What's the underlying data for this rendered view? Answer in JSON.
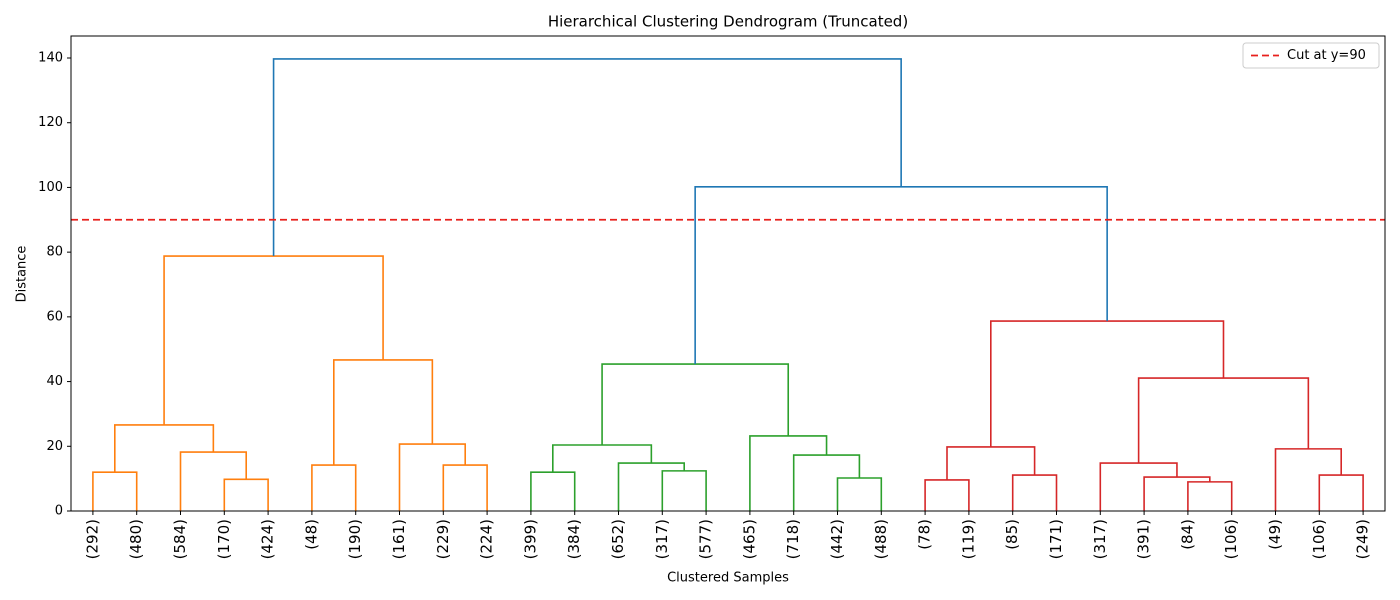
{
  "chart_data": {
    "type": "dendrogram",
    "title": "Hierarchical Clustering Dendrogram (Truncated)",
    "x_label": "Clustered Samples",
    "y_label": "Distance",
    "categories": [
      "(292)",
      "(480)",
      "(584)",
      "(170)",
      "(424)",
      "(48)",
      "(190)",
      "(161)",
      "(229)",
      "(224)",
      "(399)",
      "(384)",
      "(652)",
      "(317)",
      "(577)",
      "(465)",
      "(718)",
      "(442)",
      "(488)",
      "(78)",
      "(119)",
      "(85)",
      "(171)",
      "(317)",
      "(391)",
      "(84)",
      "(106)",
      "(49)",
      "(106)",
      "(249)"
    ],
    "xlim": [
      0,
      300
    ],
    "ylim": [
      0,
      146.8
    ],
    "yticks": [
      0,
      20,
      40,
      60,
      80,
      100,
      120,
      140
    ],
    "icoord": [
      [
        5,
        5,
        15,
        15
      ],
      [
        35,
        35,
        45,
        45
      ],
      [
        25,
        25,
        40,
        40
      ],
      [
        10,
        10,
        32.5,
        32.5
      ],
      [
        55,
        55,
        65,
        65
      ],
      [
        85,
        85,
        95,
        95
      ],
      [
        75,
        75,
        90,
        90
      ],
      [
        60,
        60,
        82.5,
        82.5
      ],
      [
        21.25,
        21.25,
        71.25,
        71.25
      ],
      [
        105,
        105,
        115,
        115
      ],
      [
        135,
        135,
        145,
        145
      ],
      [
        125,
        125,
        140,
        140
      ],
      [
        110,
        110,
        132.5,
        132.5
      ],
      [
        175,
        175,
        185,
        185
      ],
      [
        165,
        165,
        180,
        180
      ],
      [
        155,
        155,
        172.5,
        172.5
      ],
      [
        121.25,
        121.25,
        163.75,
        163.75
      ],
      [
        195,
        195,
        205,
        205
      ],
      [
        215,
        215,
        225,
        225
      ],
      [
        200,
        200,
        220,
        220
      ],
      [
        255,
        255,
        265,
        265
      ],
      [
        245,
        245,
        260,
        260
      ],
      [
        235,
        235,
        252.5,
        252.5
      ],
      [
        285,
        285,
        295,
        295
      ],
      [
        275,
        275,
        290,
        290
      ],
      [
        243.75,
        243.75,
        282.5,
        282.5
      ],
      [
        210,
        210,
        263.125,
        263.125
      ],
      [
        142.5,
        142.5,
        236.5625,
        236.5625
      ],
      [
        46.25,
        46.25,
        189.53125,
        189.53125
      ]
    ],
    "dcoord": [
      [
        0,
        12,
        12,
        0
      ],
      [
        0,
        9.8,
        9.8,
        0
      ],
      [
        0,
        18.2,
        18.2,
        9.8
      ],
      [
        12,
        26.6,
        26.6,
        18.2
      ],
      [
        0,
        14.2,
        14.2,
        0
      ],
      [
        0,
        14.2,
        14.2,
        0
      ],
      [
        0,
        20.7,
        20.7,
        14.2
      ],
      [
        14.2,
        46.7,
        46.7,
        20.7
      ],
      [
        26.6,
        78.8,
        78.8,
        46.7
      ],
      [
        0,
        12,
        12,
        0
      ],
      [
        0,
        12.4,
        12.4,
        0
      ],
      [
        0,
        14.8,
        14.8,
        12.4
      ],
      [
        12,
        20.4,
        20.4,
        14.8
      ],
      [
        0,
        10.2,
        10.2,
        0
      ],
      [
        0,
        17.3,
        17.3,
        10.2
      ],
      [
        0,
        23.2,
        23.2,
        17.3
      ],
      [
        20.4,
        45.4,
        45.4,
        23.2
      ],
      [
        0,
        9.6,
        9.6,
        0
      ],
      [
        0,
        11.1,
        11.1,
        0
      ],
      [
        9.6,
        19.8,
        19.8,
        11.1
      ],
      [
        0,
        9,
        9,
        0
      ],
      [
        0,
        10.5,
        10.5,
        9
      ],
      [
        0,
        14.8,
        14.8,
        10.5
      ],
      [
        0,
        11.1,
        11.1,
        0
      ],
      [
        0,
        19.2,
        19.2,
        11.1
      ],
      [
        14.8,
        41.1,
        41.1,
        19.2
      ],
      [
        19.8,
        58.7,
        58.7,
        41.1
      ],
      [
        45.4,
        100.2,
        100.2,
        58.7
      ],
      [
        78.8,
        139.7,
        139.7,
        100.2
      ]
    ],
    "link_colors": [
      "#ff7f0e",
      "#ff7f0e",
      "#ff7f0e",
      "#ff7f0e",
      "#ff7f0e",
      "#ff7f0e",
      "#ff7f0e",
      "#ff7f0e",
      "#ff7f0e",
      "#2ca02c",
      "#2ca02c",
      "#2ca02c",
      "#2ca02c",
      "#2ca02c",
      "#2ca02c",
      "#2ca02c",
      "#2ca02c",
      "#d62728",
      "#d62728",
      "#d62728",
      "#d62728",
      "#d62728",
      "#d62728",
      "#d62728",
      "#d62728",
      "#d62728",
      "#d62728",
      "#1f77b4",
      "#1f77b4"
    ],
    "cut": {
      "value": 90,
      "label": "Cut at y=90",
      "color": "#e8201c"
    },
    "legend_position": "upper right"
  }
}
